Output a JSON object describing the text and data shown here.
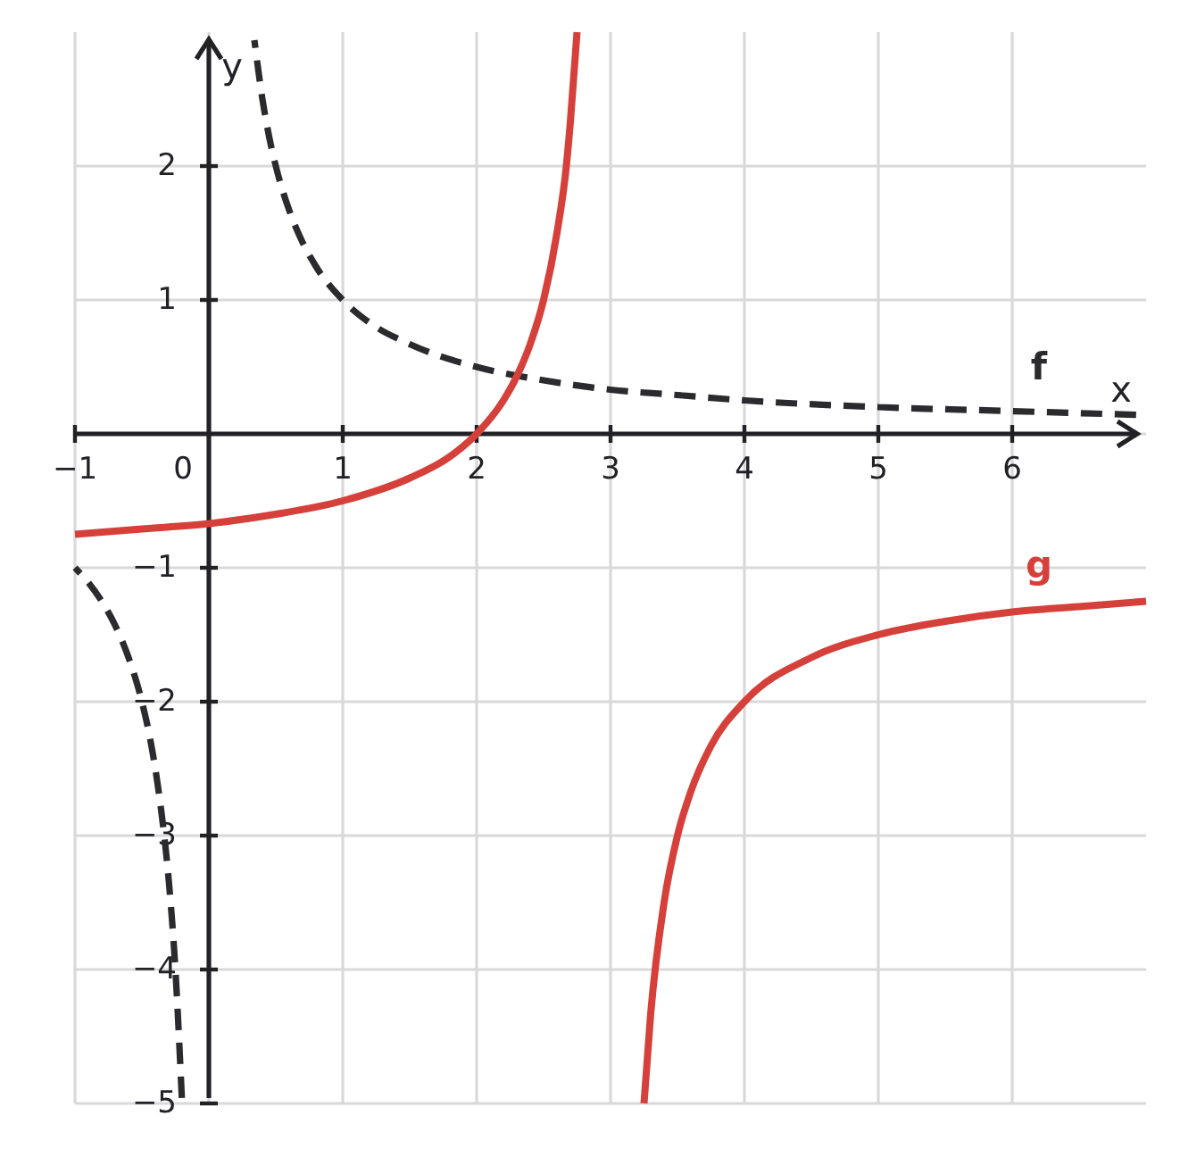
{
  "chart_data": {
    "type": "line",
    "xlabel": "x",
    "ylabel": "y",
    "xlim": [
      -1,
      7
    ],
    "ylim": [
      -5,
      3
    ],
    "xticks": [
      {
        "value": -1,
        "label": "−1"
      },
      0,
      1,
      2,
      3,
      4,
      5,
      6
    ],
    "yticks": [
      {
        "value": -5,
        "label": "−5"
      },
      {
        "value": -4,
        "label": "−4"
      },
      {
        "value": -3,
        "label": "−3"
      },
      {
        "value": -2,
        "label": "−2"
      },
      {
        "value": -1,
        "label": "−1"
      },
      {
        "value": 0,
        "label": null
      },
      1,
      2
    ],
    "grid": true,
    "series": [
      {
        "name": "f",
        "color": "#2b2b2f",
        "line_style": "dashed",
        "x": [
          -1,
          -0.9,
          -0.8,
          -0.7,
          -0.6,
          -0.5,
          -0.45,
          -0.4,
          -0.35,
          -0.3,
          -0.25,
          -0.2,
          0,
          0.34,
          0.4,
          0.45,
          0.5,
          0.6,
          0.7,
          0.8,
          1,
          1.2,
          1.5,
          2,
          2.5,
          3,
          3.5,
          4,
          5,
          6,
          7
        ],
        "values": [
          -1,
          -1.11,
          -1.25,
          -1.43,
          -1.67,
          -2,
          -2.22,
          -2.5,
          -2.86,
          -3.33,
          -4,
          -5,
          null,
          2.94,
          2.5,
          2.22,
          2,
          1.67,
          1.43,
          1.25,
          1,
          0.83,
          0.67,
          0.5,
          0.4,
          0.33,
          0.29,
          0.25,
          0.2,
          0.17,
          0.14
        ]
      },
      {
        "name": "g",
        "color": "#d6403a",
        "line_style": "solid",
        "x": [
          -1,
          -0.5,
          0,
          0.5,
          1,
          1.5,
          1.8,
          2,
          2.2,
          2.3,
          2.4,
          2.5,
          2.6,
          2.67,
          2.7,
          2.75,
          3,
          3.25,
          3.3,
          3.4,
          3.5,
          3.6,
          3.75,
          4,
          4.5,
          5,
          5.5,
          6,
          6.5,
          7
        ],
        "values": [
          -0.75,
          -0.71,
          -0.67,
          -0.6,
          -0.5,
          -0.33,
          -0.17,
          0,
          0.25,
          0.43,
          0.67,
          1,
          1.5,
          2,
          2.33,
          3,
          null,
          -5,
          -4.33,
          -3.5,
          -3,
          -2.67,
          -2.33,
          -2,
          -1.67,
          -1.5,
          -1.4,
          -1.33,
          -1.29,
          -1.25
        ]
      }
    ]
  }
}
